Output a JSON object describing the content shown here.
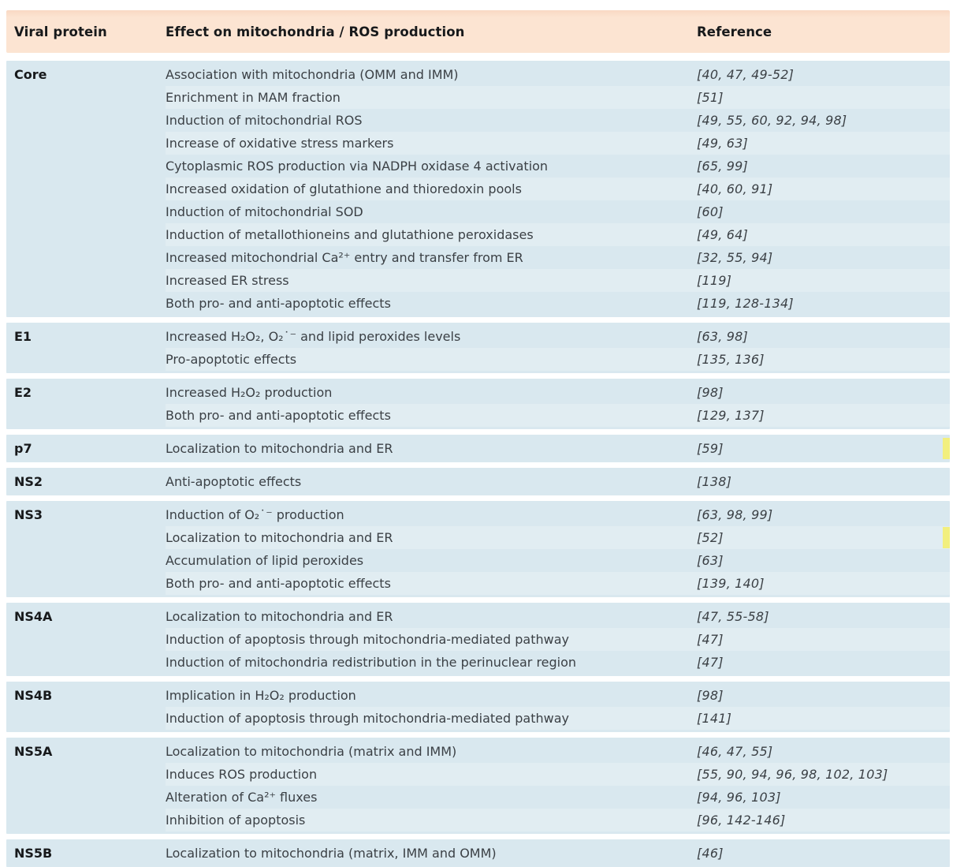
{
  "colors": {
    "header_bg": "#fce4d2",
    "section_bg": "#d9e8ef",
    "highlight": "#f2ef7e",
    "text": "#3b4045",
    "heading_text": "#17191b"
  },
  "table": {
    "columns": [
      {
        "label": "Viral protein"
      },
      {
        "label": "Effect on mitochondria / ROS production"
      },
      {
        "label": "Reference"
      }
    ],
    "sections": [
      {
        "protein": "Core",
        "rows": [
          {
            "effect": "Association with mitochondria (OMM and IMM)",
            "reference": "[40, 47, 49-52]"
          },
          {
            "effect": "Enrichment in MAM fraction",
            "reference": "[51]"
          },
          {
            "effect": "Induction of mitochondrial ROS",
            "reference": "[49, 55, 60, 92, 94, 98]"
          },
          {
            "effect": "Increase of oxidative stress markers",
            "reference": "[49, 63]"
          },
          {
            "effect": "Cytoplasmic ROS production via NADPH oxidase 4 activation",
            "reference": "[65, 99]"
          },
          {
            "effect": "Increased oxidation of glutathione and thioredoxin pools",
            "reference": "[40, 60, 91]"
          },
          {
            "effect": "Induction of mitochondrial SOD",
            "reference": "[60]"
          },
          {
            "effect": "Induction of metallothioneins and glutathione peroxidases",
            "reference": "[49, 64]"
          },
          {
            "effect": "Increased mitochondrial Ca²⁺ entry and transfer from ER",
            "reference": "[32, 55, 94]"
          },
          {
            "effect": "Increased ER stress",
            "reference": "[119]"
          },
          {
            "effect": "Both pro- and anti-apoptotic effects",
            "reference": "[119, 128-134]"
          }
        ]
      },
      {
        "protein": "E1",
        "rows": [
          {
            "effect": "Increased H₂O₂, O₂˙⁻ and lipid peroxides levels",
            "reference": "[63, 98]"
          },
          {
            "effect": "Pro-apoptotic effects",
            "reference": "[135, 136]"
          }
        ]
      },
      {
        "protein": "E2",
        "rows": [
          {
            "effect": "Increased H₂O₂ production",
            "reference": "[98]"
          },
          {
            "effect": "Both pro- and anti-apoptotic effects",
            "reference": "[129, 137]"
          }
        ]
      },
      {
        "protein": "p7",
        "rows": [
          {
            "effect": "Localization to mitochondria and ER",
            "reference": "[59]",
            "edge_highlight": true
          }
        ]
      },
      {
        "protein": "NS2",
        "rows": [
          {
            "effect": "Anti-apoptotic effects",
            "reference": "[138]"
          }
        ]
      },
      {
        "protein": "NS3",
        "rows": [
          {
            "effect": "Induction of O₂˙⁻ production",
            "reference": "[63, 98, 99]"
          },
          {
            "effect": "Localization to mitochondria and ER",
            "reference": "[52]",
            "edge_highlight": true
          },
          {
            "effect": "Accumulation of lipid peroxides",
            "reference": "[63]"
          },
          {
            "effect": "Both pro- and anti-apoptotic effects",
            "reference": "[139, 140]"
          }
        ]
      },
      {
        "protein": "NS4A",
        "rows": [
          {
            "effect": "Localization to mitochondria and ER",
            "reference": "[47, 55-58]"
          },
          {
            "effect": "Induction of apoptosis through mitochondria-mediated pathway",
            "reference": "[47]"
          },
          {
            "effect": "Induction of mitochondria redistribution in the perinuclear region",
            "reference": "[47]"
          }
        ]
      },
      {
        "protein": "NS4B",
        "rows": [
          {
            "effect": "Implication in H₂O₂ production",
            "reference": "[98]"
          },
          {
            "effect": "Induction of apoptosis through mitochondria-mediated pathway",
            "reference": "[141]"
          }
        ]
      },
      {
        "protein": "NS5A",
        "rows": [
          {
            "effect": "Localization to mitochondria (matrix and IMM)",
            "reference": "[46, 47, 55]"
          },
          {
            "effect": "Induces ROS production",
            "reference": "[55, 90, 94, 96, 98, 102, 103]"
          },
          {
            "effect": "Alteration of Ca²⁺ fluxes",
            "reference": "[94, 96, 103]"
          },
          {
            "effect": "Inhibition of apoptosis",
            "reference": "[96, 142-146]"
          }
        ]
      },
      {
        "protein": "NS5B",
        "rows": [
          {
            "effect": "Localization to mitochondria (matrix, IMM and OMM)",
            "reference": "[46]"
          }
        ]
      }
    ]
  }
}
